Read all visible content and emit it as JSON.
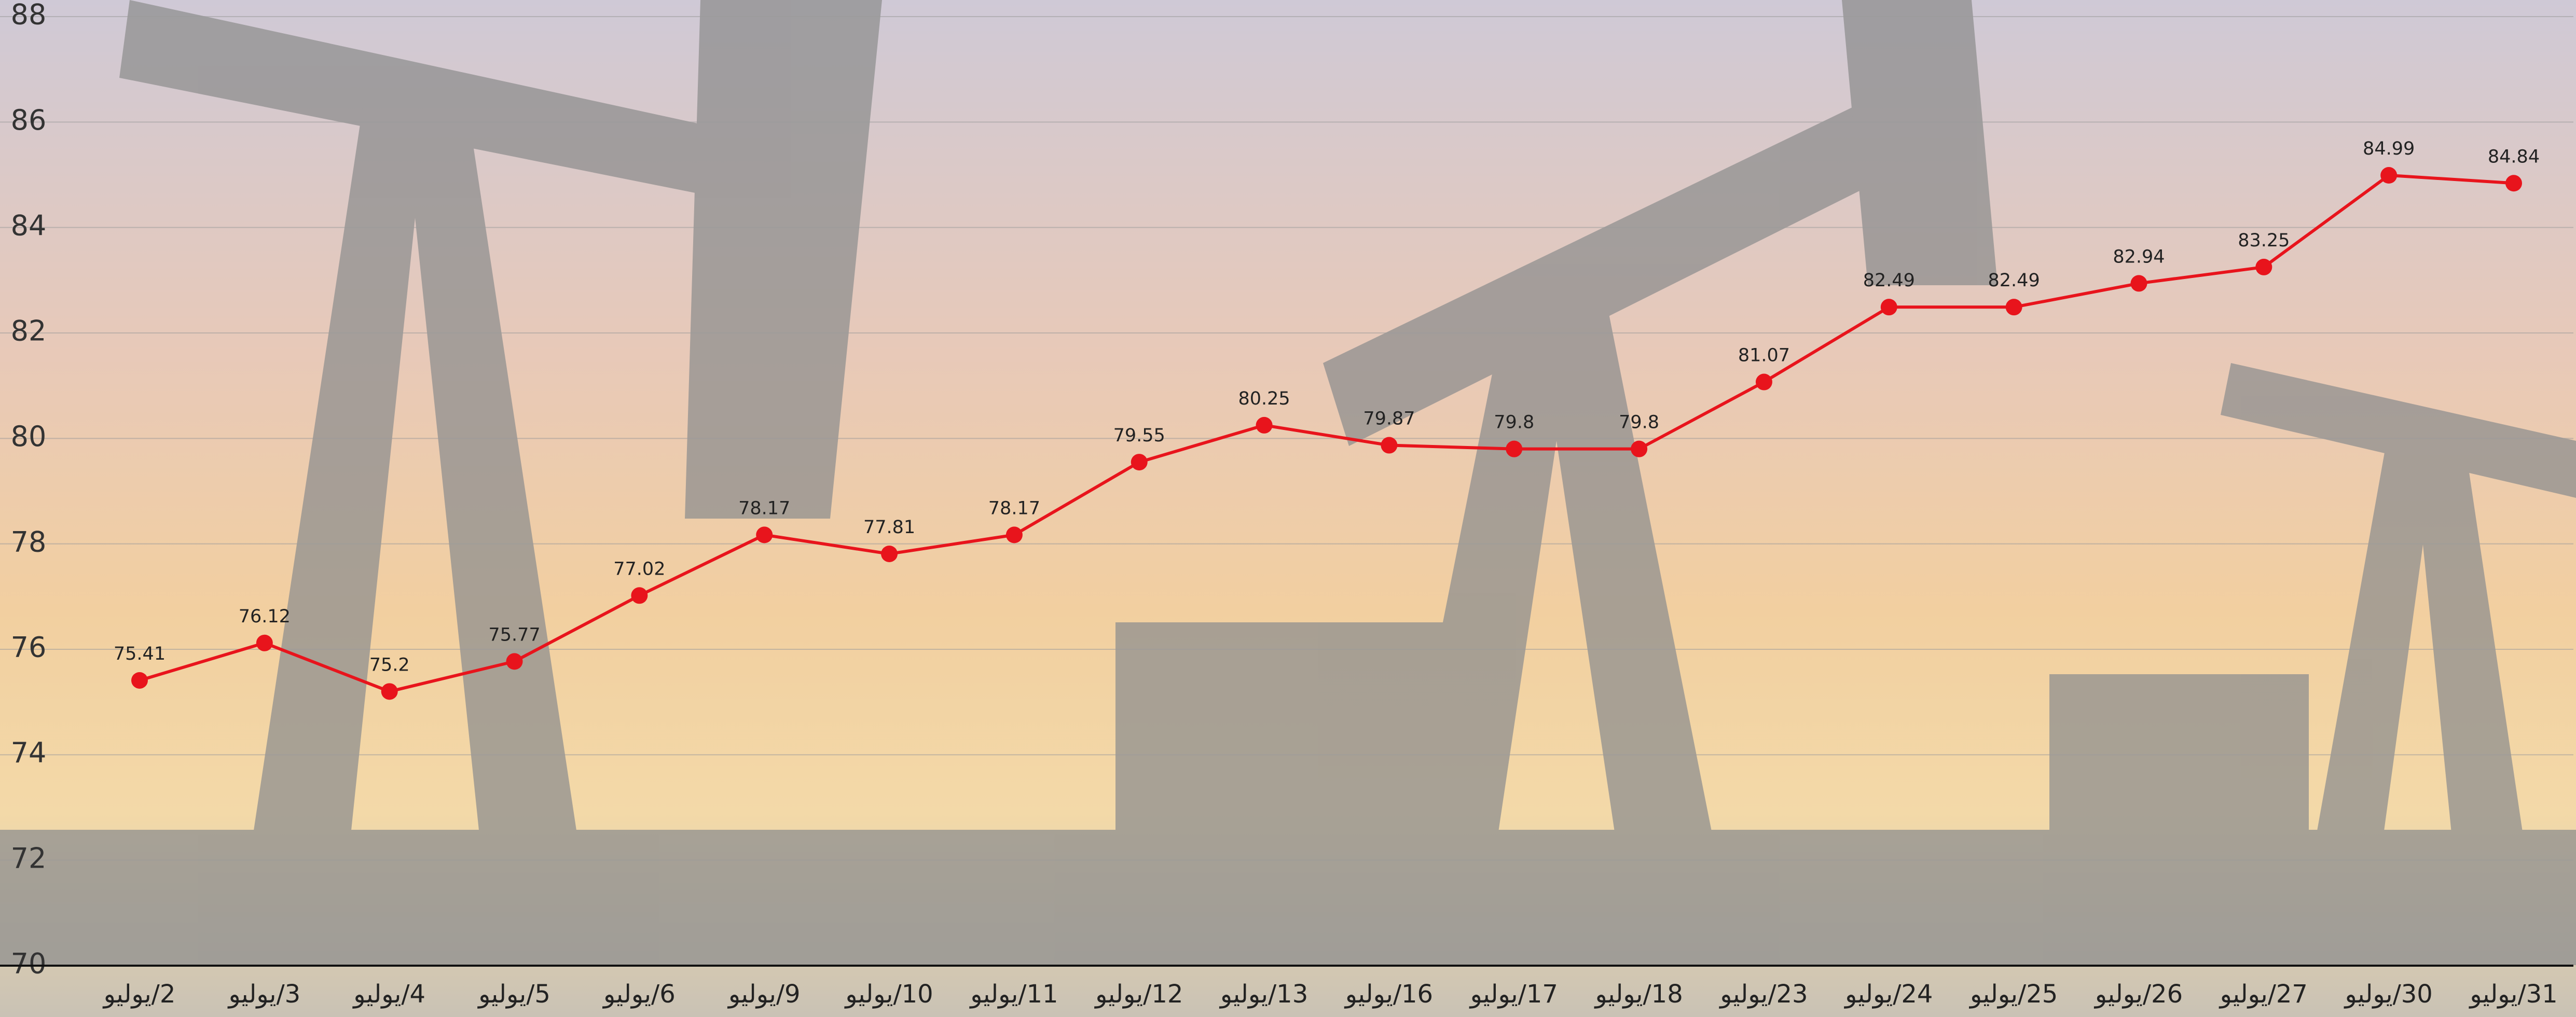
{
  "chart_data": {
    "type": "line",
    "categories": [
      "2/يوليو",
      "3/يوليو",
      "4/يوليو",
      "5/يوليو",
      "6/يوليو",
      "9/يوليو",
      "10/يوليو",
      "11/يوليو",
      "12/يوليو",
      "13/يوليو",
      "16/يوليو",
      "17/يوليو",
      "18/يوليو",
      "23/يوليو",
      "24/يوليو",
      "25/يوليو",
      "26/يوليو",
      "27/يوليو",
      "30/يوليو",
      "31/يوليو"
    ],
    "values": [
      75.41,
      76.12,
      75.2,
      75.77,
      77.02,
      78.17,
      77.81,
      78.17,
      79.55,
      80.25,
      79.87,
      79.8,
      79.8,
      81.07,
      82.49,
      82.49,
      82.94,
      83.25,
      84.99,
      84.84
    ],
    "color": "#e8141c",
    "ylim": [
      70,
      88
    ],
    "yticks": [
      70,
      72,
      74,
      76,
      78,
      80,
      82,
      84,
      86,
      88
    ],
    "grid": true
  }
}
